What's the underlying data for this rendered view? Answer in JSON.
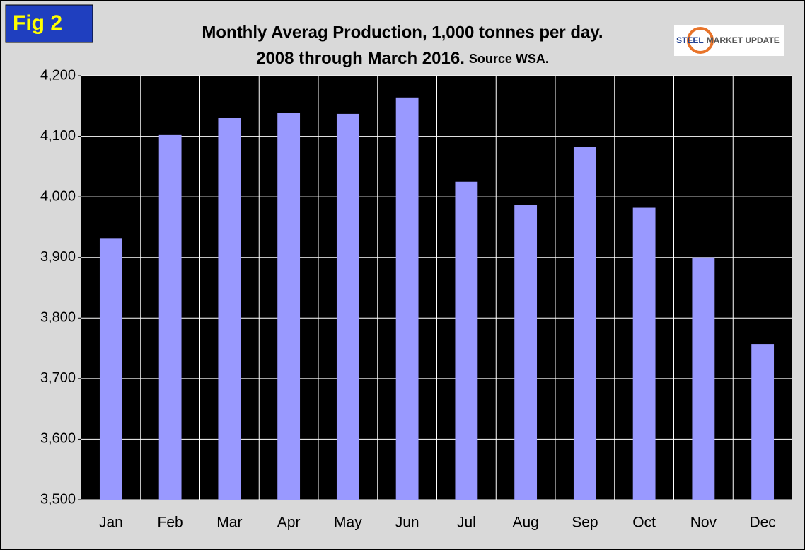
{
  "fig_label": "Fig 2",
  "logo": {
    "brand": "STEEL",
    "rest": "MARKET UPDATE"
  },
  "chart_data": {
    "type": "bar",
    "title": "Monthly Averag Production, 1,000 tonnes per day.",
    "subtitle": "2008 through March 2016.",
    "source": "Source WSA.",
    "categories": [
      "Jan",
      "Feb",
      "Mar",
      "Apr",
      "May",
      "Jun",
      "Jul",
      "Aug",
      "Sep",
      "Oct",
      "Nov",
      "Dec"
    ],
    "values": [
      3932,
      4102,
      4131,
      4139,
      4137,
      4164,
      4025,
      3987,
      4083,
      3982,
      3900,
      3757
    ],
    "color": "#9999ff",
    "ylim": [
      3500,
      4200
    ],
    "yticks": [
      {
        "value": 3500,
        "label": "3,500"
      },
      {
        "value": 3600,
        "label": "3,600"
      },
      {
        "value": 3700,
        "label": "3,700"
      },
      {
        "value": 3800,
        "label": "3,800"
      },
      {
        "value": 3900,
        "label": "3,900"
      },
      {
        "value": 4000,
        "label": "4,000"
      },
      {
        "value": 4100,
        "label": "4,100"
      },
      {
        "value": 4200,
        "label": "4,200"
      }
    ],
    "grid": true
  }
}
